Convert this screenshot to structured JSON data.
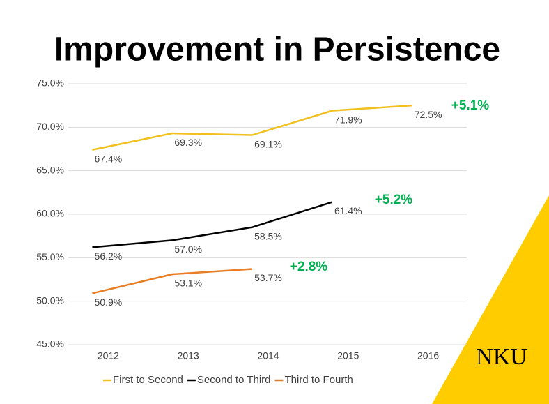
{
  "chart_data": {
    "type": "line",
    "title": "Improvement in Persistence",
    "categories": [
      "2012",
      "2013",
      "2014",
      "2015",
      "2016"
    ],
    "series": [
      {
        "name": "First to Second",
        "color": "#f2c01e",
        "values": [
          67.4,
          69.3,
          69.1,
          71.9,
          72.5
        ],
        "value_labels": [
          "67.4%",
          "69.3%",
          "69.1%",
          "71.9%",
          "72.5%"
        ]
      },
      {
        "name": "Second to Third",
        "color": "#000000",
        "values": [
          56.2,
          57.0,
          58.5,
          61.4,
          null
        ],
        "value_labels": [
          "56.2%",
          "57.0%",
          "58.5%",
          "61.4%",
          null
        ]
      },
      {
        "name": "Third to Fourth",
        "color": "#e87d24",
        "values": [
          50.9,
          53.1,
          53.7,
          null,
          null
        ],
        "value_labels": [
          "50.9%",
          "53.1%",
          "53.7%",
          null,
          null
        ]
      }
    ],
    "ylim": [
      45,
      75
    ],
    "yticks": [
      {
        "value": 45,
        "label": "45.0%"
      },
      {
        "value": 50,
        "label": "50.0%"
      },
      {
        "value": 55,
        "label": "55.0%"
      },
      {
        "value": 60,
        "label": "60.0%"
      },
      {
        "value": 65,
        "label": "65.0%"
      },
      {
        "value": 70,
        "label": "70.0%"
      },
      {
        "value": 75,
        "label": "75.0%"
      }
    ],
    "grid": true,
    "legend": "bottom",
    "annotations": [
      "+5.1%",
      "+5.2%",
      "+2.8%"
    ],
    "annotation_color": "#00b050",
    "logo": "NKU"
  }
}
